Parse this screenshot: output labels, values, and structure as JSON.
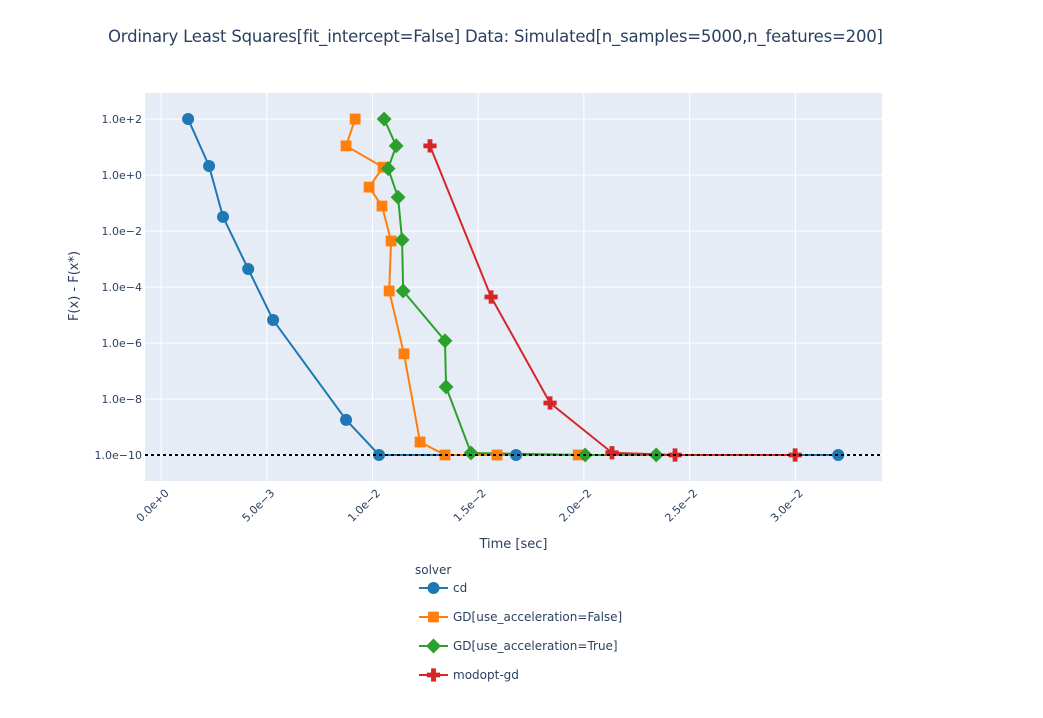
{
  "chart_data": {
    "type": "line",
    "title": "Ordinary Least Squares[fit_intercept=False] Data: Simulated[n_samples=5000,n_features=200]",
    "xlabel": "Time [sec]",
    "ylabel": "F(x) - F(x*)",
    "xscale": "linear",
    "yscale": "log",
    "xlim": [
      -0.00076,
      0.0341
    ],
    "ylim_log10": [
      -10.93,
      2.93
    ],
    "x_ticks": [
      0,
      0.005,
      0.01,
      0.015,
      0.02,
      0.025,
      0.03
    ],
    "x_tick_labels": [
      "0.0e+0",
      "5.0e−3",
      "1.0e−2",
      "1.5e−2",
      "2.0e−2",
      "2.5e−2",
      "3.0e−2"
    ],
    "y_ticks_log10": [
      2,
      0,
      -2,
      -4,
      -6,
      -8,
      -10
    ],
    "y_tick_labels": [
      "1.0e+2",
      "1.0e+0",
      "1.0e−2",
      "1.0e−4",
      "1.0e−6",
      "1.0e−8",
      "1.0e−10"
    ],
    "grid": true,
    "reference_line": {
      "y": 1e-10,
      "style": "dotted",
      "color": "#000000"
    },
    "legend": {
      "title": "solver",
      "position": "bottom-center"
    },
    "series": [
      {
        "name": "cd",
        "color": "#1f77b4",
        "marker": "circle",
        "x": [
          0.00128,
          0.00227,
          0.00293,
          0.00412,
          0.0053,
          0.00875,
          0.01031,
          0.01679,
          0.03203
        ],
        "y": [
          100,
          2.1,
          0.032,
          0.00044,
          6.6e-06,
          1.8e-09,
          1e-10,
          1e-10,
          1e-10
        ]
      },
      {
        "name": "GD[use_acceleration=False]",
        "color": "#ff7f0e",
        "marker": "square",
        "x": [
          0.00918,
          0.00875,
          0.0105,
          0.00984,
          0.01045,
          0.01088,
          0.01079,
          0.01149,
          0.01225,
          0.01343,
          0.01589,
          0.01973
        ],
        "y": [
          100,
          11,
          1.9,
          0.37,
          0.078,
          0.0044,
          7.2e-05,
          4.1e-07,
          2.9e-10,
          1e-10,
          1e-10,
          1e-10
        ]
      },
      {
        "name": "GD[use_acceleration=True]",
        "color": "#2ca02c",
        "marker": "diamond",
        "x": [
          0.01055,
          0.01112,
          0.01074,
          0.01121,
          0.0114,
          0.01145,
          0.01343,
          0.01348,
          0.01466,
          0.02006,
          0.02342
        ],
        "y": [
          100,
          11,
          1.7,
          0.16,
          0.0048,
          7.2e-05,
          1.2e-06,
          2.7e-08,
          1.18e-10,
          1e-10,
          1e-10
        ]
      },
      {
        "name": "modopt-gd",
        "color": "#d62728",
        "marker": "cross",
        "x": [
          0.01272,
          0.01561,
          0.0184,
          0.02133,
          0.02431,
          0.02999
        ],
        "y": [
          11,
          4.4e-05,
          7.2e-09,
          1.2e-10,
          1e-10,
          1e-10
        ]
      }
    ]
  }
}
